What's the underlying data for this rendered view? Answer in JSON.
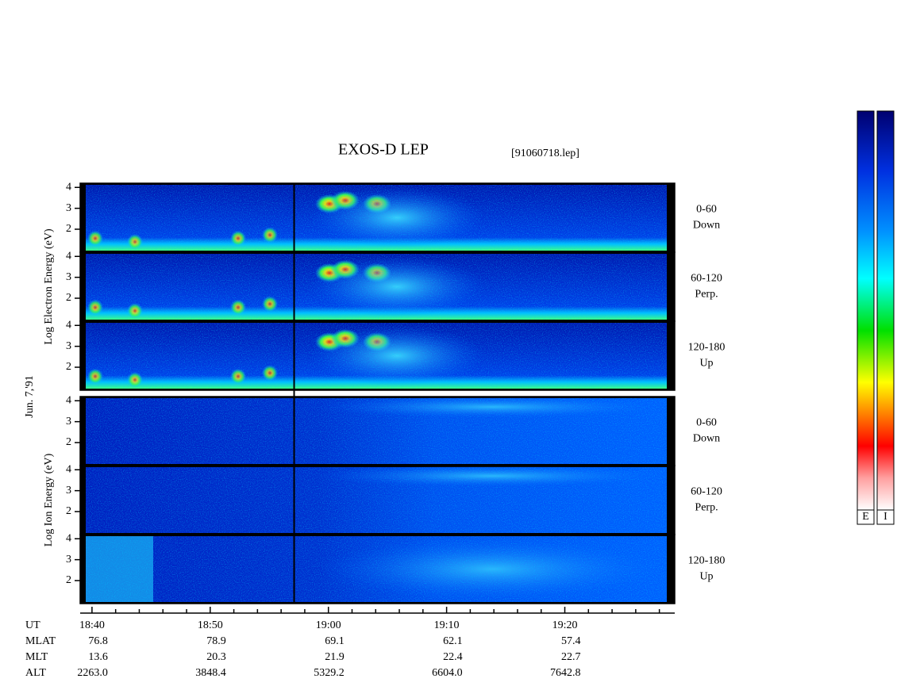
{
  "chart_data": {
    "type": "spectrogram",
    "title": "EXOS-D LEP",
    "file": "[91060718.lep]",
    "date_label": "Jun. 7,'91",
    "groups": [
      {
        "ylabel": "Log  Electron  Energy  (eV)",
        "panels": [
          {
            "label": [
              "0-60",
              "Down"
            ]
          },
          {
            "label": [
              "60-120",
              "Perp."
            ]
          },
          {
            "label": [
              "120-180",
              "Up"
            ]
          }
        ]
      },
      {
        "ylabel": "Log  Ion  Energy  (eV)",
        "panels": [
          {
            "label": [
              "0-60",
              "Down"
            ]
          },
          {
            "label": [
              "60-120",
              "Perp."
            ]
          },
          {
            "label": [
              "120-180",
              "Up"
            ]
          }
        ]
      }
    ],
    "ylim": [
      0.9,
      4.2
    ],
    "yticks": [
      2,
      3,
      4
    ],
    "xlim": [
      1119,
      1169.3
    ],
    "xticks": [
      {
        "value": 1120,
        "label": "18:40"
      },
      {
        "value": 1130,
        "label": "18:50"
      },
      {
        "value": 1140,
        "label": "19:00"
      },
      {
        "value": 1150,
        "label": "19:10"
      },
      {
        "value": 1160,
        "label": "19:20"
      }
    ],
    "xminorticks": [
      1122,
      1124,
      1126,
      1128,
      1132,
      1134,
      1136,
      1138,
      1142,
      1144,
      1146,
      1148,
      1152,
      1154,
      1156,
      1158,
      1162,
      1164,
      1166,
      1168
    ],
    "marker_x": 1137.1,
    "ephemeris": [
      {
        "name": "UT"
      },
      {
        "name": "MLAT",
        "labels": [
          "76.8",
          "78.9",
          "69.1",
          "62.1",
          "57.4"
        ]
      },
      {
        "name": "MLT",
        "labels": [
          "13.6",
          "20.3",
          "21.9",
          "22.4",
          "22.7"
        ]
      },
      {
        "name": "ALT",
        "labels": [
          "2263.0",
          "3848.4",
          "5329.2",
          "6604.0",
          "7642.8"
        ]
      }
    ],
    "colorbars": [
      "E",
      "I"
    ]
  }
}
